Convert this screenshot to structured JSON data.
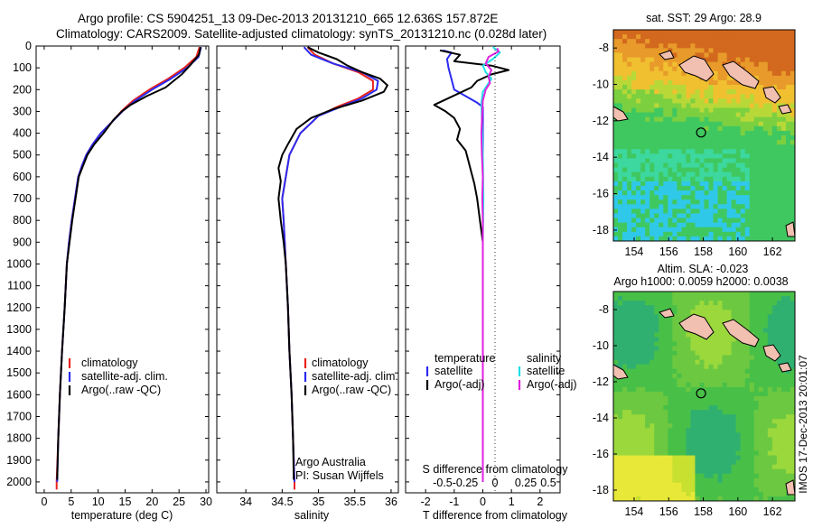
{
  "header": {
    "line1": "Argo profile: CS 5904251_13 09-Dec-2013 20131210_665 12.636S 157.872E",
    "line2": "Climatology: CARS2009. Satellite-adjusted climatology: synTS_20131210.nc (0.028d later)"
  },
  "colors": {
    "clim": "#e8221e",
    "sat": "#2a2af0",
    "argo": "#000000",
    "sal_sat": "#20e0e8",
    "sal_argo": "#e020e0"
  },
  "depth_axis": {
    "ticks": [
      0,
      100,
      200,
      300,
      400,
      500,
      600,
      700,
      800,
      900,
      1000,
      1100,
      1200,
      1300,
      1400,
      1500,
      1600,
      1700,
      1800,
      1900,
      2000
    ],
    "ylim": [
      0,
      2050
    ]
  },
  "chart_data": [
    {
      "type": "line",
      "name": "temperature-profile",
      "xlabel": "temperature (deg C)",
      "ylabel": "depth",
      "xlim": [
        -1.5,
        30.5
      ],
      "ylim": [
        0,
        2050
      ],
      "xticks": [
        0,
        5,
        10,
        15,
        20,
        25,
        30
      ],
      "legend": [
        "climatology",
        "satellite-adj. clim.",
        "Argo(..raw -QC)"
      ],
      "series": [
        {
          "name": "climatology",
          "color": "#e8221e",
          "points": [
            [
              28.8,
              5
            ],
            [
              28.2,
              50
            ],
            [
              26.0,
              100
            ],
            [
              23.0,
              150
            ],
            [
              19.5,
              200
            ],
            [
              16.5,
              250
            ],
            [
              14.3,
              300
            ],
            [
              12.5,
              350
            ],
            [
              10.5,
              400
            ],
            [
              9.0,
              450
            ],
            [
              7.8,
              500
            ],
            [
              7.0,
              550
            ],
            [
              6.3,
              600
            ],
            [
              5.7,
              700
            ],
            [
              5.1,
              800
            ],
            [
              4.6,
              900
            ],
            [
              4.2,
              1000
            ],
            [
              3.8,
              1200
            ],
            [
              3.3,
              1400
            ],
            [
              2.9,
              1600
            ],
            [
              2.6,
              1800
            ],
            [
              2.3,
              2000
            ],
            [
              2.3,
              2035
            ]
          ]
        },
        {
          "name": "satellite-adj. clim.",
          "color": "#2a2af0",
          "points": [
            [
              29.1,
              5
            ],
            [
              28.6,
              50
            ],
            [
              26.5,
              100
            ],
            [
              23.5,
              150
            ],
            [
              20.0,
              200
            ],
            [
              16.9,
              250
            ],
            [
              14.5,
              300
            ],
            [
              12.5,
              350
            ],
            [
              10.5,
              400
            ],
            [
              9.0,
              450
            ],
            [
              7.8,
              500
            ],
            [
              7.0,
              550
            ],
            [
              6.3,
              600
            ],
            [
              5.7,
              700
            ],
            [
              5.1,
              800
            ],
            [
              4.6,
              900
            ],
            [
              4.2,
              1000
            ],
            [
              3.8,
              1200
            ],
            [
              3.3,
              1400
            ],
            [
              2.9,
              1600
            ],
            [
              2.6,
              1800
            ],
            [
              2.4,
              2000
            ]
          ]
        },
        {
          "name": "Argo(..raw -QC)",
          "color": "#000000",
          "points": [
            [
              29.0,
              5
            ],
            [
              28.7,
              40
            ],
            [
              27.0,
              90
            ],
            [
              25.5,
              130
            ],
            [
              24.0,
              160
            ],
            [
              22.5,
              190
            ],
            [
              19.0,
              230
            ],
            [
              16.0,
              270
            ],
            [
              14.4,
              300
            ],
            [
              12.8,
              340
            ],
            [
              11.0,
              400
            ],
            [
              9.3,
              450
            ],
            [
              8.0,
              500
            ],
            [
              7.2,
              550
            ],
            [
              6.4,
              600
            ],
            [
              5.8,
              700
            ],
            [
              5.2,
              800
            ],
            [
              4.7,
              900
            ],
            [
              4.2,
              1000
            ],
            [
              3.8,
              1200
            ],
            [
              3.3,
              1400
            ],
            [
              2.9,
              1600
            ],
            [
              2.6,
              1800
            ],
            [
              2.4,
              1990
            ]
          ]
        }
      ]
    },
    {
      "type": "line",
      "name": "salinity-profile",
      "xlabel": "salinity",
      "ylabel": "depth",
      "xlim": [
        33.6,
        36.1
      ],
      "ylim": [
        0,
        2050
      ],
      "xticks": [
        34,
        34.5,
        35,
        35.5,
        36
      ],
      "legend": [
        "climatology",
        "satellite-adj. clim.",
        "Argo(..raw -QC)"
      ],
      "annotation": [
        "Argo Australia",
        "PI: Susan Wijffels"
      ],
      "series": [
        {
          "name": "climatology",
          "color": "#e8221e",
          "points": [
            [
              34.85,
              5
            ],
            [
              34.95,
              40
            ],
            [
              35.2,
              80
            ],
            [
              35.55,
              120
            ],
            [
              35.75,
              160
            ],
            [
              35.75,
              200
            ],
            [
              35.55,
              240
            ],
            [
              35.25,
              280
            ],
            [
              35.0,
              320
            ],
            [
              34.75,
              400
            ],
            [
              34.6,
              500
            ],
            [
              34.55,
              600
            ],
            [
              34.5,
              700
            ],
            [
              34.52,
              800
            ],
            [
              34.55,
              1000
            ],
            [
              34.58,
              1200
            ],
            [
              34.6,
              1400
            ],
            [
              34.63,
              1600
            ],
            [
              34.65,
              1800
            ],
            [
              34.67,
              2000
            ],
            [
              34.67,
              2035
            ]
          ]
        },
        {
          "name": "satellite-adj. clim.",
          "color": "#2a2af0",
          "points": [
            [
              34.8,
              5
            ],
            [
              34.9,
              40
            ],
            [
              35.2,
              80
            ],
            [
              35.6,
              120
            ],
            [
              35.82,
              160
            ],
            [
              35.8,
              200
            ],
            [
              35.6,
              240
            ],
            [
              35.3,
              280
            ],
            [
              35.0,
              320
            ],
            [
              34.75,
              400
            ],
            [
              34.6,
              500
            ],
            [
              34.55,
              600
            ],
            [
              34.5,
              700
            ],
            [
              34.52,
              800
            ],
            [
              34.55,
              1000
            ],
            [
              34.58,
              1200
            ],
            [
              34.6,
              1400
            ],
            [
              34.63,
              1600
            ],
            [
              34.65,
              1800
            ],
            [
              34.67,
              2000
            ]
          ]
        },
        {
          "name": "Argo(..raw -QC)",
          "color": "#000000",
          "points": [
            [
              34.85,
              5
            ],
            [
              35.0,
              30
            ],
            [
              35.25,
              60
            ],
            [
              35.4,
              90
            ],
            [
              35.6,
              120
            ],
            [
              35.85,
              150
            ],
            [
              35.95,
              180
            ],
            [
              35.9,
              210
            ],
            [
              35.6,
              250
            ],
            [
              35.2,
              290
            ],
            [
              34.9,
              330
            ],
            [
              34.7,
              380
            ],
            [
              34.58,
              450
            ],
            [
              34.5,
              500
            ],
            [
              34.45,
              560
            ],
            [
              34.48,
              620
            ],
            [
              34.45,
              700
            ],
            [
              34.48,
              800
            ],
            [
              34.52,
              900
            ],
            [
              34.55,
              1000
            ],
            [
              34.58,
              1200
            ],
            [
              34.6,
              1400
            ],
            [
              34.63,
              1600
            ],
            [
              34.65,
              1800
            ],
            [
              34.66,
              1990
            ]
          ]
        }
      ]
    },
    {
      "type": "line",
      "name": "difference-profile",
      "xlabel_top": "S difference from climatology",
      "xlabel": "T difference from climatology",
      "ylim": [
        0,
        2050
      ],
      "xlim_T": [
        -2.7,
        2.7
      ],
      "xticks_S": [
        -0.5,
        -0.25,
        0,
        0.25,
        0.5
      ],
      "xticks_T": [
        -2,
        -1,
        0,
        1,
        2
      ],
      "legend_temperature": [
        "temperature",
        "satellite",
        "Argo(-adj)"
      ],
      "legend_salinity": [
        "salinity",
        "satellite",
        "Argo(-adj)"
      ],
      "series": [
        {
          "name": "temperature satellite",
          "color": "#2a2af0",
          "points": [
            [
              -1.4,
              20
            ],
            [
              -1.1,
              30
            ],
            [
              -1.25,
              60
            ],
            [
              -1.2,
              100
            ],
            [
              -1.1,
              150
            ],
            [
              -1.0,
              200
            ],
            [
              -0.6,
              230
            ],
            [
              -0.2,
              260
            ],
            [
              0,
              280
            ],
            [
              0,
              2000
            ]
          ]
        },
        {
          "name": "temperature Argo(-adj)",
          "color": "#000000",
          "points": [
            [
              -1.5,
              20
            ],
            [
              -0.8,
              40
            ],
            [
              -1.0,
              70
            ],
            [
              0.3,
              90
            ],
            [
              0.9,
              110
            ],
            [
              0.3,
              130
            ],
            [
              -0.2,
              160
            ],
            [
              -0.4,
              190
            ],
            [
              -1.7,
              270
            ],
            [
              -1.3,
              300
            ],
            [
              -1.0,
              330
            ],
            [
              -0.8,
              380
            ],
            [
              -0.9,
              430
            ],
            [
              -0.6,
              480
            ],
            [
              -0.5,
              530
            ],
            [
              -0.4,
              580
            ],
            [
              -0.3,
              630
            ],
            [
              -0.2,
              700
            ],
            [
              -0.1,
              800
            ],
            [
              0,
              900
            ],
            [
              0,
              2000
            ]
          ]
        },
        {
          "name": "salinity satellite",
          "color": "#20e0e8",
          "points": [
            [
              0.35,
              5
            ],
            [
              0.6,
              30
            ],
            [
              0.35,
              60
            ],
            [
              0.0,
              90
            ],
            [
              0.1,
              120
            ],
            [
              0.3,
              150
            ],
            [
              0.15,
              180
            ],
            [
              0.0,
              210
            ],
            [
              -0.05,
              260
            ],
            [
              -0.03,
              350
            ],
            [
              0.0,
              500
            ],
            [
              0.02,
              700
            ],
            [
              0.0,
              900
            ],
            [
              0.0,
              2000
            ]
          ]
        },
        {
          "name": "salinity Argo(-adj)",
          "color": "#e020e0",
          "points": [
            [
              0.5,
              10
            ],
            [
              0.55,
              25
            ],
            [
              0.2,
              50
            ],
            [
              0.1,
              80
            ],
            [
              0.3,
              110
            ],
            [
              0.2,
              140
            ],
            [
              0.25,
              170
            ],
            [
              0.1,
              200
            ],
            [
              0.0,
              250
            ],
            [
              -0.02,
              300
            ],
            [
              -0.05,
              400
            ],
            [
              -0.03,
              500
            ],
            [
              0.0,
              600
            ],
            [
              -0.02,
              700
            ],
            [
              0.0,
              800
            ],
            [
              0.0,
              900
            ],
            [
              0.0,
              1000
            ],
            [
              0.0,
              2000
            ]
          ]
        }
      ]
    },
    {
      "type": "heatmap",
      "name": "sst-map",
      "title": "sat. SST: 29 Argo: 28.9",
      "xlim": [
        152.8,
        163.3
      ],
      "ylim": [
        -18.6,
        -7.0
      ],
      "xticks": [
        154,
        156,
        158,
        160,
        162
      ],
      "yticks": [
        -8,
        -10,
        -12,
        -14,
        -16,
        -18
      ],
      "argo_position": [
        157.87,
        -12.64
      ]
    },
    {
      "type": "heatmap",
      "name": "sla-map",
      "title": "Altim. SLA: -0.023",
      "subtitle": "Argo h1000: 0.0059 h2000: 0.0038",
      "xlim": [
        152.8,
        163.3
      ],
      "ylim": [
        -18.6,
        -7.0
      ],
      "xticks": [
        154,
        156,
        158,
        160,
        162
      ],
      "yticks": [
        -8,
        -10,
        -12,
        -14,
        -16,
        -18
      ],
      "argo_position": [
        157.87,
        -12.64
      ]
    }
  ],
  "side_label": "IMOS 17-Dec-2013 20:01:07"
}
